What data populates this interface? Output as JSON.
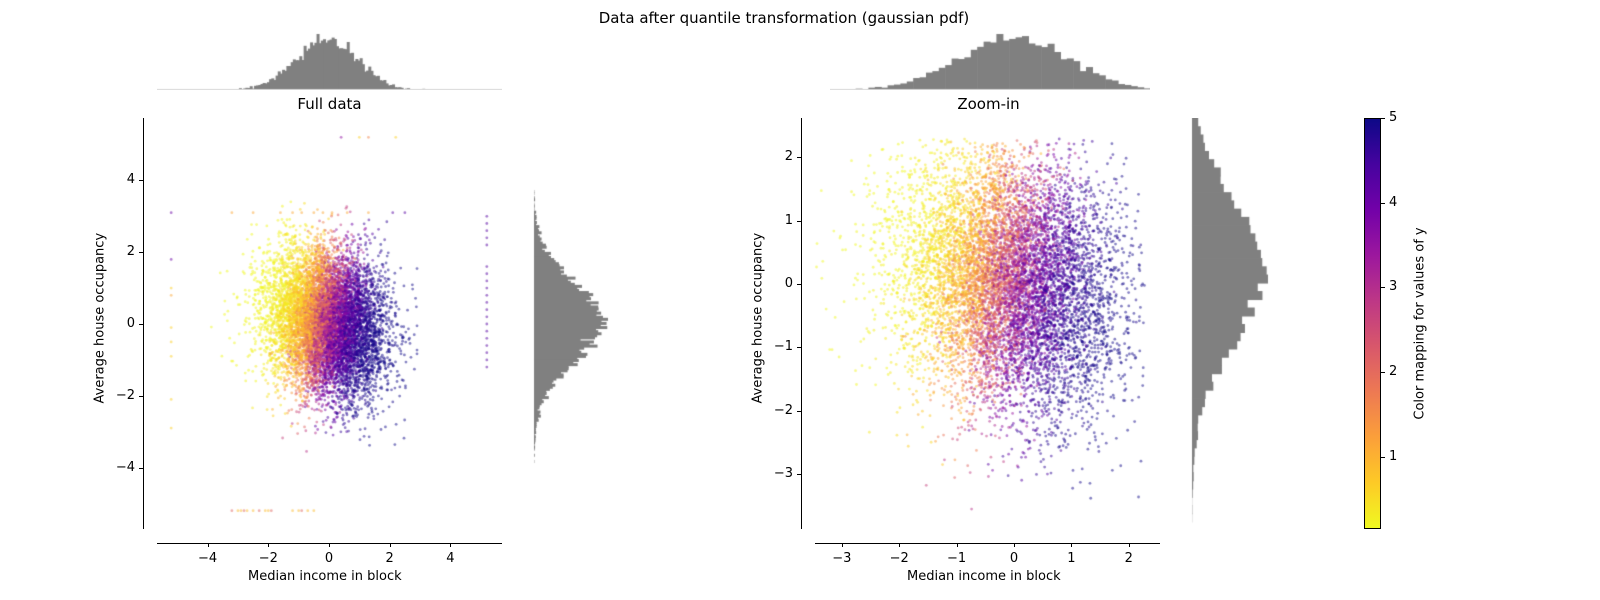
{
  "suptitle": "Data after quantile transformation (gaussian pdf)",
  "chart_data": [
    {
      "type": "scatter",
      "title": "Full data",
      "xlabel": "Median income in block",
      "ylabel": "Average house occupancy",
      "xlim": [
        -5.6,
        5.7
      ],
      "ylim": [
        -5.8,
        5.7
      ],
      "xticks": [
        -4,
        -2,
        0,
        2,
        4
      ],
      "yticks": [
        -4,
        -2,
        0,
        2,
        4
      ],
      "xtick_labels": [
        "−4",
        "−2",
        "0",
        "2",
        "4"
      ],
      "ytick_labels": [
        "−4",
        "−2",
        "0",
        "2",
        "4"
      ],
      "grid": false,
      "color_by": "y (target)",
      "colormap": "plasma_r",
      "marginal_histograms": {
        "top": "x distribution",
        "right": "y distribution",
        "color": "#808080"
      },
      "point_cloud": {
        "x_mean": -0.1,
        "x_std": 0.95,
        "y_mean": 0.05,
        "y_std": 1.0,
        "n_points": 9000
      },
      "outliers": {
        "x_clip": [
          -5.2,
          5.2
        ],
        "y_clip": [
          -5.2,
          5.2
        ]
      }
    },
    {
      "type": "scatter",
      "title": "Zoom-in",
      "xlabel": "Median income in block",
      "ylabel": "Average house occupancy",
      "xlim": [
        -3.45,
        2.55
      ],
      "ylim": [
        -3.85,
        2.6
      ],
      "xticks": [
        -3,
        -2,
        -1,
        0,
        1,
        2
      ],
      "yticks": [
        -3,
        -2,
        -1,
        0,
        1,
        2
      ],
      "xtick_labels": [
        "−3",
        "−2",
        "−1",
        "0",
        "1",
        "2"
      ],
      "ytick_labels": [
        "−3",
        "−2",
        "−1",
        "0",
        "1",
        "2"
      ],
      "grid": false,
      "color_by": "y (target)",
      "colormap": "plasma_r",
      "marginal_histograms": {
        "top": "x distribution",
        "right": "y distribution",
        "color": "#808080"
      },
      "point_cloud": {
        "x_mean": -0.1,
        "x_std": 0.95,
        "y_mean": 0.05,
        "y_std": 1.0,
        "n_points": 9000
      }
    }
  ],
  "colorbar": {
    "label": "Color mapping for values of y",
    "ticks": [
      "1",
      "2",
      "3",
      "4",
      "5"
    ],
    "range": [
      0.15,
      5.0
    ],
    "colormap": "plasma_r"
  },
  "colors": {
    "hist": "#808080",
    "plasma_stops": [
      "#0d0887",
      "#46039f",
      "#7201a8",
      "#9c179e",
      "#bd3786",
      "#d8576b",
      "#ed7953",
      "#fb9f3a",
      "#fdca26",
      "#f0f921"
    ]
  }
}
